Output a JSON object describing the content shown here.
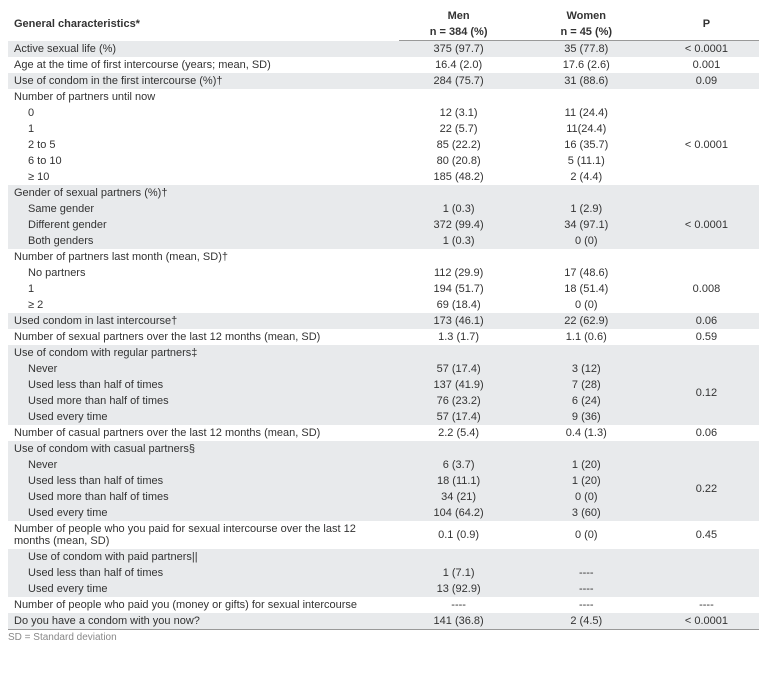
{
  "columns": {
    "c1_a": "General characteristics*",
    "c2_a": "Men",
    "c2_b": "n = 384 (%)",
    "c3_a": "Women",
    "c3_b": "n = 45 (%)",
    "c4_a": "P"
  },
  "col_widths": {
    "label": "52%",
    "men": "16%",
    "women": "18%",
    "p": "14%"
  },
  "rows": [
    {
      "label": "Active sexual life (%)",
      "men": "375 (97.7)",
      "women": "35 (77.8)",
      "p": "< 0.0001",
      "shade": true,
      "indent": false,
      "rowspan": 1
    },
    {
      "label": "Age at the time of first intercourse (years; mean, SD)",
      "men": "16.4 (2.0)",
      "women": "17.6 (2.6)",
      "p": "0.001",
      "shade": false,
      "indent": false,
      "rowspan": 1
    },
    {
      "label": "Use of condom in the first intercourse (%)†",
      "men": "284 (75.7)",
      "women": "31 (88.6)",
      "p": "0.09",
      "shade": true,
      "indent": false,
      "rowspan": 1
    },
    {
      "label": "Number of partners until now",
      "men": "",
      "women": "",
      "p": "",
      "shade": false,
      "indent": false,
      "rowspan": 1,
      "no_p": true
    },
    {
      "label": "0",
      "men": "12 (3.1)",
      "women": "11 (24.4)",
      "p": "< 0.0001",
      "shade": false,
      "indent": true,
      "rowspan": 5,
      "first_of_group": true,
      "no_p": false
    },
    {
      "label": "1",
      "men": "22 (5.7)",
      "women": "11(24.4)",
      "p": "",
      "shade": false,
      "indent": true,
      "no_p": true,
      "in_group": true
    },
    {
      "label": "2 to 5",
      "men": "85 (22.2)",
      "women": "16 (35.7)",
      "p": "",
      "shade": false,
      "indent": true,
      "no_p": true,
      "in_group": true
    },
    {
      "label": "6 to 10",
      "men": "80 (20.8)",
      "women": "5 (11.1)",
      "p": "",
      "shade": false,
      "indent": true,
      "no_p": true,
      "in_group": true
    },
    {
      "label": "≥ 10",
      "men": "185 (48.2)",
      "women": "2 (4.4)",
      "p": "",
      "shade": false,
      "indent": true,
      "no_p": true,
      "in_group": true
    },
    {
      "label": "Gender of sexual partners (%)†",
      "men": "",
      "women": "",
      "p": "",
      "shade": true,
      "indent": false,
      "no_p": true
    },
    {
      "label": "Same gender",
      "men": "1 (0.3)",
      "women": "1 (2.9)",
      "p": "< 0.0001",
      "shade": true,
      "indent": true,
      "rowspan": 3,
      "first_of_group": true
    },
    {
      "label": "Different gender",
      "men": "372 (99.4)",
      "women": "34 (97.1)",
      "p": "",
      "shade": true,
      "indent": true,
      "no_p": true,
      "in_group": true
    },
    {
      "label": "Both genders",
      "men": "1 (0.3)",
      "women": "0 (0)",
      "p": "",
      "shade": true,
      "indent": true,
      "no_p": true,
      "in_group": true
    },
    {
      "label": "Number of partners last month (mean, SD)†",
      "men": "",
      "women": "",
      "p": "",
      "shade": false,
      "indent": false,
      "no_p": true
    },
    {
      "label": "No partners",
      "men": "112 (29.9)",
      "women": "17 (48.6)",
      "p": "0.008",
      "shade": false,
      "indent": true,
      "rowspan": 3,
      "first_of_group": true
    },
    {
      "label": "1",
      "men": "194 (51.7)",
      "women": "18 (51.4)",
      "p": "",
      "shade": false,
      "indent": true,
      "no_p": true,
      "in_group": true
    },
    {
      "label": "≥ 2",
      "men": "69 (18.4)",
      "women": "0 (0)",
      "p": "",
      "shade": false,
      "indent": true,
      "no_p": true,
      "in_group": true
    },
    {
      "label": "Used condom in last intercourse†",
      "men": "173 (46.1)",
      "women": "22 (62.9)",
      "p": "0.06",
      "shade": true,
      "indent": false,
      "rowspan": 1
    },
    {
      "label": "Number of sexual partners over the last 12 months (mean, SD)",
      "men": "1.3 (1.7)",
      "women": "1.1 (0.6)",
      "p": "0.59",
      "shade": false,
      "indent": false,
      "rowspan": 1
    },
    {
      "label": "Use of condom with regular partners‡",
      "men": "",
      "women": "",
      "p": "",
      "shade": true,
      "indent": false,
      "no_p": true
    },
    {
      "label": "Never",
      "men": "57 (17.4)",
      "women": "3 (12)",
      "p": "0.12",
      "shade": true,
      "indent": true,
      "rowspan": 4,
      "first_of_group": true
    },
    {
      "label": "Used less than half of times",
      "men": "137 (41.9)",
      "women": "7 (28)",
      "p": "",
      "shade": true,
      "indent": true,
      "no_p": true,
      "in_group": true
    },
    {
      "label": "Used more than half of times",
      "men": "76 (23.2)",
      "women": "6 (24)",
      "p": "",
      "shade": true,
      "indent": true,
      "no_p": true,
      "in_group": true
    },
    {
      "label": "Used every time",
      "men": "57 (17.4)",
      "women": "9 (36)",
      "p": "",
      "shade": true,
      "indent": true,
      "no_p": true,
      "in_group": true
    },
    {
      "label": "Number of casual partners over the last 12 months (mean, SD)",
      "men": "2.2 (5.4)",
      "women": "0.4 (1.3)",
      "p": "0.06",
      "shade": false,
      "indent": false,
      "rowspan": 1
    },
    {
      "label": "Use of condom with casual partners§",
      "men": "",
      "women": "",
      "p": "",
      "shade": true,
      "indent": false,
      "no_p": true
    },
    {
      "label": "Never",
      "men": "6 (3.7)",
      "women": "1 (20)",
      "p": "0.22",
      "shade": true,
      "indent": true,
      "rowspan": 4,
      "first_of_group": true
    },
    {
      "label": "Used less than half of times",
      "men": "18 (11.1)",
      "women": "1 (20)",
      "p": "",
      "shade": true,
      "indent": true,
      "no_p": true,
      "in_group": true
    },
    {
      "label": "Used more than half of times",
      "men": "34 (21)",
      "women": "0 (0)",
      "p": "",
      "shade": true,
      "indent": true,
      "no_p": true,
      "in_group": true
    },
    {
      "label": "Used every time",
      "men": "104 (64.2)",
      "women": "3 (60)",
      "p": "",
      "shade": true,
      "indent": true,
      "no_p": true,
      "in_group": true
    },
    {
      "label": "Number of people who you paid for sexual intercourse over the last 12 months (mean, SD)",
      "men": "0.1 (0.9)",
      "women": "0 (0)",
      "p": "0.45",
      "shade": false,
      "indent": false,
      "rowspan": 1
    },
    {
      "label": "Use of condom with paid partners||",
      "men": "",
      "women": "",
      "p": "",
      "shade": true,
      "indent": true,
      "no_p": true
    },
    {
      "label": "Used less than half of times",
      "men": "1 (7.1)",
      "women": "----",
      "p": "",
      "shade": true,
      "indent": true,
      "no_p": true
    },
    {
      "label": "Used every time",
      "men": "13 (92.9)",
      "women": "----",
      "p": "",
      "shade": true,
      "indent": true,
      "no_p": true
    },
    {
      "label": "Number of people who paid you (money or gifts) for sexual intercourse",
      "men": "----",
      "women": "----",
      "p": "----",
      "shade": false,
      "indent": false,
      "rowspan": 1
    },
    {
      "label": "Do you have a condom with you now?",
      "men": "141 (36.8)",
      "women": "2 (4.5)",
      "p": "< 0.0001",
      "shade": true,
      "indent": false,
      "rowspan": 1
    }
  ],
  "footnote": "SD = Standard deviation"
}
